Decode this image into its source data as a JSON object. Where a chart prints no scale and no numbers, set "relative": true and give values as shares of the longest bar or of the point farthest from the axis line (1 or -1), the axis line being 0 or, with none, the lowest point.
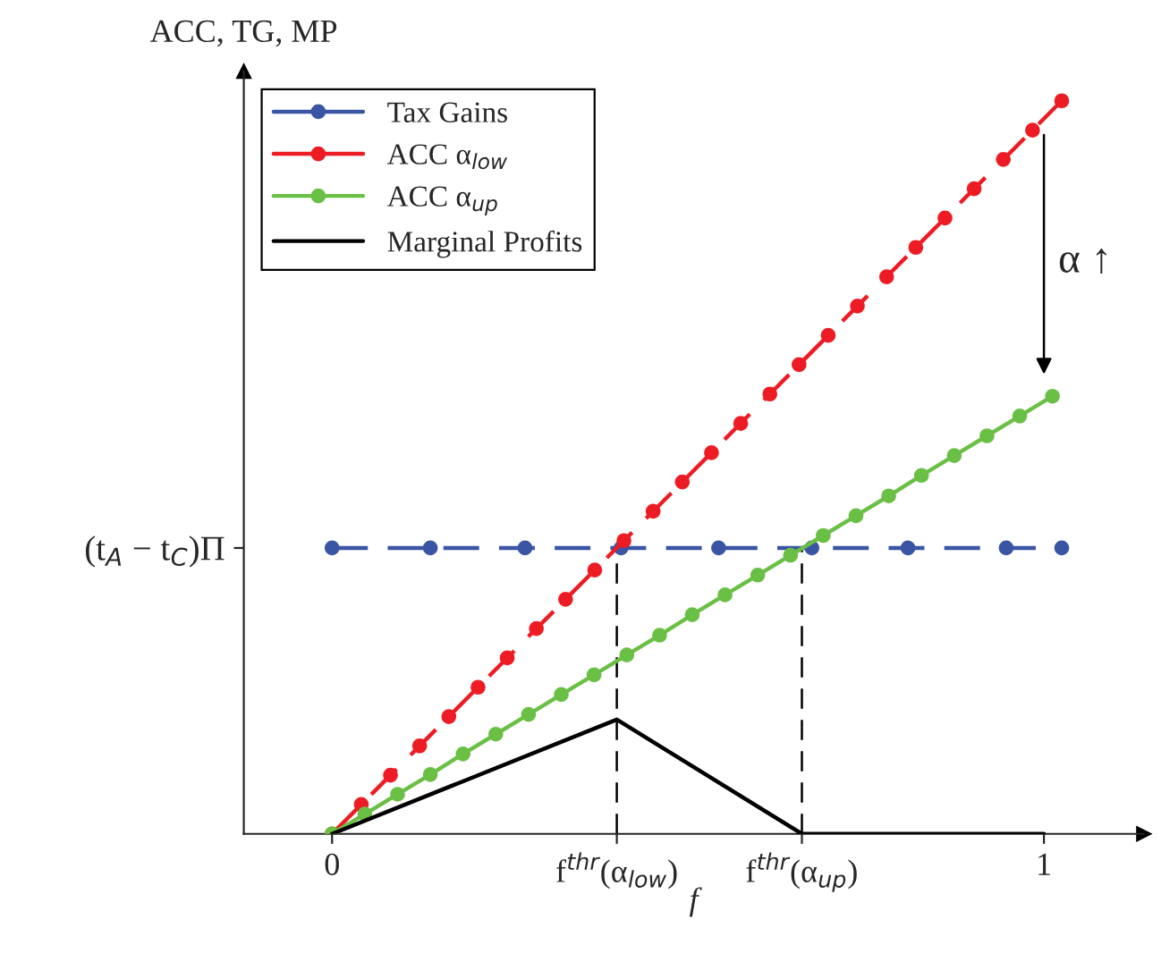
{
  "chart_data": {
    "type": "line",
    "relative": true,
    "ylabel": "ACC, TG, MP",
    "xlabel": "f",
    "xlim": [
      -0.124,
      1.14
    ],
    "xticks": [
      0,
      {
        "value": 0.4,
        "label": "f$^{thr}$(α$_{low}$)"
      },
      {
        "value": 0.66,
        "label": "f$^{thr}$(α$_{up}$)"
      },
      1
    ],
    "series": [
      {
        "name": "Tax Gains",
        "color": "#3a55a4",
        "marker": "circle",
        "line_style": "dashed",
        "x": [
          0,
          0.138,
          0.271,
          0.406,
          0.543,
          0.674,
          0.809,
          0.947,
          1.025
        ],
        "values": [
          0.39,
          0.39,
          0.39,
          0.39,
          0.39,
          0.39,
          0.39,
          0.39,
          0.39
        ]
      },
      {
        "name": "ACC α$_{low}$",
        "color": "#ed1c24",
        "marker": "circle",
        "line_style": "dashed",
        "x": [
          0,
          0.041,
          0.082,
          0.123,
          0.164,
          0.205,
          0.246,
          0.287,
          0.328,
          0.369,
          0.41,
          0.451,
          0.492,
          0.533,
          0.574,
          0.615,
          0.656,
          0.697,
          0.738,
          0.779,
          0.82,
          0.861,
          0.902,
          0.943,
          0.984,
          1.025
        ],
        "values": [
          0,
          0.04,
          0.08,
          0.12,
          0.16,
          0.2,
          0.24,
          0.28,
          0.32,
          0.36,
          0.4,
          0.44,
          0.48,
          0.52,
          0.56,
          0.6,
          0.64,
          0.68,
          0.72,
          0.76,
          0.8,
          0.84,
          0.88,
          0.92,
          0.96,
          1.0
        ]
      },
      {
        "name": "ACC α$_{up}$",
        "color": "#6abf45",
        "marker": "circle",
        "line_style": "solid",
        "x": [
          0,
          0.046,
          0.092,
          0.138,
          0.184,
          0.23,
          0.276,
          0.322,
          0.368,
          0.414,
          0.46,
          0.506,
          0.552,
          0.598,
          0.644,
          0.69,
          0.736,
          0.782,
          0.828,
          0.874,
          0.92,
          0.966,
          1.012
        ],
        "values": [
          0,
          0.027,
          0.054,
          0.081,
          0.109,
          0.136,
          0.163,
          0.19,
          0.217,
          0.244,
          0.271,
          0.299,
          0.326,
          0.353,
          0.38,
          0.407,
          0.434,
          0.461,
          0.489,
          0.516,
          0.543,
          0.57,
          0.597
        ]
      },
      {
        "name": "Marginal Profits",
        "color": "#000000",
        "marker": "none",
        "line_style": "solid",
        "x": [
          0,
          0.4,
          0.66,
          1.0
        ],
        "values": [
          0,
          0.156,
          0,
          0
        ]
      }
    ],
    "ref_lines": [
      {
        "axis": "x",
        "value": 0.4,
        "color": "#000000",
        "line_style": "dashed"
      },
      {
        "axis": "x",
        "value": 0.66,
        "color": "#000000",
        "line_style": "dashed"
      }
    ],
    "annotations": [
      "(t$_{A}$ − t$_{C}$)Π",
      "α ↑"
    ],
    "legend": "top left",
    "grid": false
  }
}
